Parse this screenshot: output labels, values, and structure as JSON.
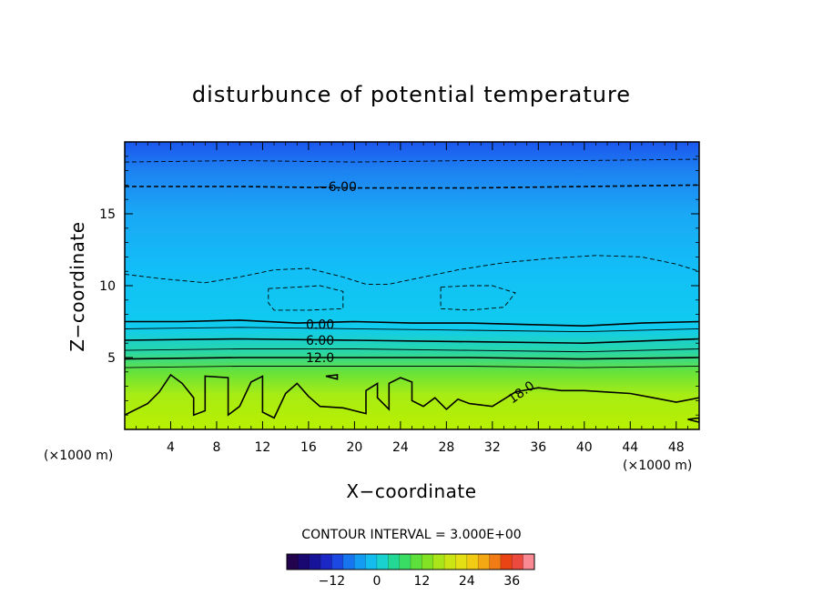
{
  "chart_data": {
    "type": "contour",
    "title": "disturbunce of potential temperature",
    "xlabel": "X−coordinate",
    "ylabel": "Z−coordinate",
    "x_unit": "(×1000 m)",
    "y_unit": "(×1000 m)",
    "xlim": [
      0,
      50
    ],
    "ylim": [
      0,
      20
    ],
    "x_ticks": [
      4,
      8,
      12,
      16,
      20,
      24,
      28,
      32,
      36,
      40,
      44,
      48
    ],
    "y_ticks": [
      5,
      10,
      15
    ],
    "contour_interval_text": "CONTOUR INTERVAL = 3.000E+00",
    "contour_labels": [
      {
        "text": "−6.00",
        "x": 18.5,
        "z": 16.9
      },
      {
        "text": "0.00",
        "x": 17.0,
        "z": 7.3
      },
      {
        "text": "6.00",
        "x": 17.0,
        "z": 6.2
      },
      {
        "text": "12.0",
        "x": 17.0,
        "z": 5.0
      },
      {
        "text": "18.0",
        "x": 34.5,
        "z": 2.6
      }
    ],
    "contour_lines": [
      {
        "level": -9,
        "style": "dashed",
        "points": [
          [
            0,
            18.6
          ],
          [
            10,
            18.7
          ],
          [
            20,
            18.6
          ],
          [
            30,
            18.7
          ],
          [
            40,
            18.7
          ],
          [
            50,
            18.8
          ]
        ]
      },
      {
        "level": -6,
        "style": "dashed",
        "points": [
          [
            0,
            16.9
          ],
          [
            10,
            16.9
          ],
          [
            20,
            16.8
          ],
          [
            30,
            16.8
          ],
          [
            40,
            16.9
          ],
          [
            50,
            17.0
          ]
        ]
      },
      {
        "level": -3,
        "style": "dashed",
        "points": [
          [
            0,
            10.8
          ],
          [
            3,
            10.5
          ],
          [
            7,
            10.2
          ],
          [
            10,
            10.6
          ],
          [
            13,
            11.1
          ],
          [
            16,
            11.2
          ],
          [
            19,
            10.6
          ],
          [
            21,
            10.1
          ],
          [
            23,
            10.1
          ],
          [
            26,
            10.6
          ],
          [
            29,
            11.1
          ],
          [
            33,
            11.6
          ],
          [
            37,
            11.9
          ],
          [
            41,
            12.1
          ],
          [
            45,
            12.0
          ],
          [
            48,
            11.5
          ],
          [
            50,
            11.0
          ]
        ]
      },
      {
        "level": -3,
        "style": "dashed",
        "points": [
          [
            12.5,
            9.8
          ],
          [
            15,
            9.9
          ],
          [
            17,
            10.0
          ],
          [
            19,
            9.6
          ],
          [
            19,
            8.4
          ],
          [
            16,
            8.3
          ],
          [
            13,
            8.3
          ],
          [
            12.5,
            8.8
          ],
          [
            12.5,
            9.8
          ]
        ]
      },
      {
        "level": -3,
        "style": "dashed",
        "points": [
          [
            27.5,
            9.9
          ],
          [
            30,
            10.0
          ],
          [
            32,
            10.0
          ],
          [
            34,
            9.5
          ],
          [
            33,
            8.5
          ],
          [
            30,
            8.3
          ],
          [
            27.5,
            8.4
          ],
          [
            27.5,
            9.9
          ]
        ]
      },
      {
        "level": 0,
        "style": "solid",
        "points": [
          [
            0,
            7.5
          ],
          [
            5,
            7.5
          ],
          [
            10,
            7.6
          ],
          [
            15,
            7.4
          ],
          [
            20,
            7.5
          ],
          [
            25,
            7.4
          ],
          [
            30,
            7.4
          ],
          [
            35,
            7.3
          ],
          [
            40,
            7.2
          ],
          [
            45,
            7.4
          ],
          [
            50,
            7.5
          ]
        ]
      },
      {
        "level": 3,
        "style": "solid",
        "points": [
          [
            0,
            7.0
          ],
          [
            10,
            7.1
          ],
          [
            20,
            7.0
          ],
          [
            30,
            6.9
          ],
          [
            40,
            6.8
          ],
          [
            50,
            7.0
          ]
        ]
      },
      {
        "level": 6,
        "style": "solid",
        "points": [
          [
            0,
            6.2
          ],
          [
            10,
            6.3
          ],
          [
            20,
            6.2
          ],
          [
            30,
            6.1
          ],
          [
            40,
            6.0
          ],
          [
            50,
            6.3
          ]
        ]
      },
      {
        "level": 9,
        "style": "solid",
        "points": [
          [
            0,
            5.5
          ],
          [
            10,
            5.6
          ],
          [
            20,
            5.6
          ],
          [
            30,
            5.5
          ],
          [
            40,
            5.4
          ],
          [
            50,
            5.6
          ]
        ]
      },
      {
        "level": 12,
        "style": "solid",
        "points": [
          [
            0,
            4.9
          ],
          [
            10,
            5.0
          ],
          [
            20,
            5.0
          ],
          [
            30,
            5.0
          ],
          [
            40,
            4.9
          ],
          [
            50,
            5.0
          ]
        ]
      },
      {
        "level": 15,
        "style": "solid",
        "points": [
          [
            0,
            4.3
          ],
          [
            10,
            4.4
          ],
          [
            20,
            4.4
          ],
          [
            30,
            4.4
          ],
          [
            40,
            4.3
          ],
          [
            50,
            4.4
          ]
        ]
      },
      {
        "level": 18,
        "style": "solid",
        "points": [
          [
            0,
            1.0
          ],
          [
            2,
            1.8
          ],
          [
            3,
            2.6
          ],
          [
            4,
            3.8
          ],
          [
            5,
            3.2
          ],
          [
            6,
            2.2
          ],
          [
            6,
            1.0
          ],
          [
            7,
            1.3
          ],
          [
            7,
            3.7
          ],
          [
            9,
            3.6
          ],
          [
            9,
            1.0
          ],
          [
            10,
            1.6
          ],
          [
            11,
            3.3
          ],
          [
            12,
            3.7
          ],
          [
            12,
            1.2
          ],
          [
            13,
            0.8
          ],
          [
            14,
            2.5
          ],
          [
            15,
            3.2
          ],
          [
            16,
            2.3
          ],
          [
            17,
            1.6
          ],
          [
            19,
            1.5
          ],
          [
            21,
            1.1
          ],
          [
            21,
            2.7
          ],
          [
            22,
            3.2
          ],
          [
            22,
            2.2
          ],
          [
            23,
            1.4
          ],
          [
            23,
            3.2
          ],
          [
            24,
            3.6
          ],
          [
            25,
            3.3
          ],
          [
            25,
            2.0
          ],
          [
            26,
            1.6
          ],
          [
            27,
            2.2
          ],
          [
            28,
            1.4
          ],
          [
            29,
            2.1
          ],
          [
            30,
            1.8
          ],
          [
            32,
            1.6
          ],
          [
            34,
            2.6
          ],
          [
            36,
            2.9
          ],
          [
            38,
            2.7
          ],
          [
            40,
            2.7
          ],
          [
            42,
            2.6
          ],
          [
            44,
            2.5
          ],
          [
            46,
            2.2
          ],
          [
            48,
            1.9
          ],
          [
            50,
            2.2
          ]
        ]
      },
      {
        "level": 18,
        "style": "solid",
        "points": [
          [
            17.5,
            3.7
          ],
          [
            18.5,
            3.8
          ],
          [
            18.5,
            3.5
          ],
          [
            17.5,
            3.7
          ]
        ]
      },
      {
        "level": 18,
        "style": "solid",
        "points": [
          [
            49,
            0.7
          ],
          [
            50,
            0.8
          ],
          [
            50,
            0.5
          ],
          [
            49,
            0.7
          ]
        ]
      }
    ],
    "colorbar": {
      "min": -24,
      "max": 42,
      "step": 3,
      "tick_values": [
        -12,
        0,
        12,
        24,
        36
      ],
      "tick_labels": [
        "−12",
        "0",
        "12",
        "24",
        "36"
      ]
    }
  }
}
